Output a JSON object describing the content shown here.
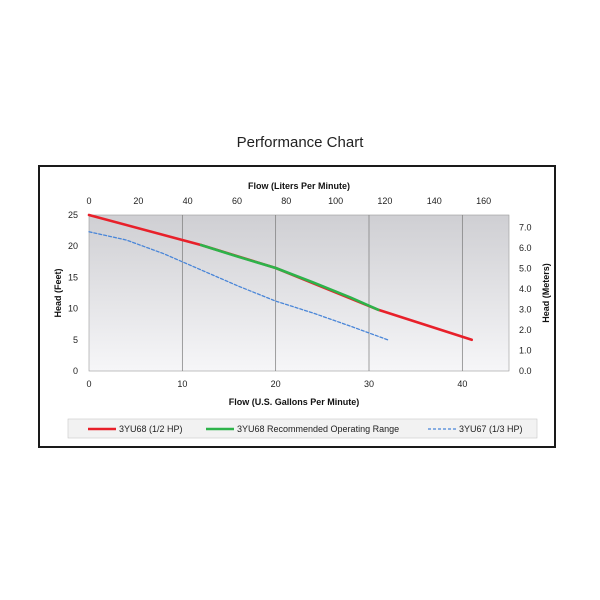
{
  "chart_data": {
    "type": "line",
    "title": "Performance Chart",
    "xlabel": "Flow (U.S. Gallons Per Minute)",
    "x2label": "Flow (Liters Per Minute)",
    "ylabel": "Head (Feet)",
    "y2label": "Head (Meters)",
    "xlim": [
      0,
      45
    ],
    "ylim": [
      0,
      25
    ],
    "x2lim": [
      0,
      170.3
    ],
    "y2lim": [
      0,
      7.62
    ],
    "xticks": [
      0,
      10,
      20,
      30,
      40
    ],
    "yticks": [
      0,
      5,
      10,
      15,
      20,
      25
    ],
    "x2ticks": [
      0,
      20,
      40,
      60,
      80,
      100,
      120,
      140,
      160
    ],
    "y2ticks": [
      "0.0",
      "1.0",
      "2.0",
      "3.0",
      "4.0",
      "5.0",
      "6.0",
      "7.0"
    ],
    "grid": "vertical",
    "legend_position": "bottom",
    "series": [
      {
        "name": "3YU68 (1/2 HP)",
        "color": "#e8202a",
        "style": "solid",
        "x": [
          0,
          10,
          12,
          20,
          31,
          41
        ],
        "y": [
          25,
          21,
          20.2,
          16.5,
          9.8,
          5
        ]
      },
      {
        "name": "3YU68 Recommended Operating Range",
        "color": "#2db34a",
        "style": "solid",
        "x": [
          12,
          16,
          20,
          24,
          28,
          31
        ],
        "y": [
          20.2,
          18.3,
          16.5,
          14.2,
          11.8,
          9.8
        ]
      },
      {
        "name": "3YU67 (1/3 HP)",
        "color": "#4a86d8",
        "style": "dashed",
        "x": [
          0,
          4,
          8,
          12,
          16,
          20,
          24,
          28,
          32
        ],
        "y": [
          22.3,
          21,
          18.8,
          16.2,
          13.6,
          11.2,
          9.3,
          7.2,
          5
        ]
      }
    ]
  }
}
